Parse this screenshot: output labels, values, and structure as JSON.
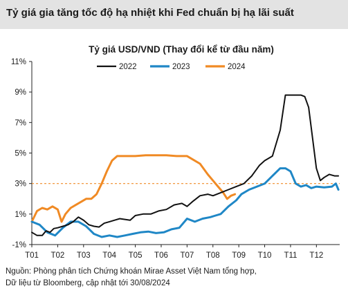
{
  "header": {
    "title": "Tỷ giá gia tăng tốc độ hạ nhiệt khi Fed chuẩn bị hạ lãi suất"
  },
  "chart_data": {
    "type": "line",
    "title": "Tỷ giá USD/VND (Thay đổi kể từ đầu năm)",
    "xlabel": "",
    "ylabel": "",
    "x_ticks": [
      "T01",
      "T02",
      "T03",
      "T04",
      "T05",
      "T06",
      "T07",
      "T08",
      "T09",
      "T10",
      "T11",
      "T12"
    ],
    "y_ticks": [
      "11%",
      "9%",
      "7%",
      "5%",
      "3%",
      "1%",
      "-1%"
    ],
    "y_tick_values": [
      11,
      9,
      7,
      5,
      3,
      1,
      -1
    ],
    "ylim": [
      -1,
      11
    ],
    "xlim": [
      1,
      12.9
    ],
    "grid": false,
    "legend_position": "top",
    "reference_line": {
      "y": 3.0,
      "style": "dashed",
      "color": "#f08a24"
    },
    "series": [
      {
        "name": "2022",
        "color": "#111111",
        "points": [
          [
            1.0,
            -0.2
          ],
          [
            1.2,
            -0.4
          ],
          [
            1.4,
            -0.4
          ],
          [
            1.55,
            -0.1
          ],
          [
            1.7,
            -0.2
          ],
          [
            1.85,
            0.05
          ],
          [
            2.0,
            0.1
          ],
          [
            2.2,
            0.2
          ],
          [
            2.4,
            0.3
          ],
          [
            2.6,
            0.5
          ],
          [
            2.8,
            0.8
          ],
          [
            3.0,
            0.6
          ],
          [
            3.2,
            0.3
          ],
          [
            3.4,
            0.2
          ],
          [
            3.6,
            0.15
          ],
          [
            3.8,
            0.4
          ],
          [
            4.0,
            0.5
          ],
          [
            4.2,
            0.6
          ],
          [
            4.4,
            0.7
          ],
          [
            4.6,
            0.65
          ],
          [
            4.8,
            0.6
          ],
          [
            5.0,
            0.9
          ],
          [
            5.3,
            1.0
          ],
          [
            5.6,
            1.0
          ],
          [
            5.9,
            1.2
          ],
          [
            6.2,
            1.3
          ],
          [
            6.5,
            1.6
          ],
          [
            6.8,
            1.7
          ],
          [
            7.0,
            1.5
          ],
          [
            7.2,
            1.8
          ],
          [
            7.5,
            2.2
          ],
          [
            7.8,
            2.3
          ],
          [
            8.0,
            2.2
          ],
          [
            8.3,
            2.4
          ],
          [
            8.6,
            2.6
          ],
          [
            8.9,
            2.8
          ],
          [
            9.2,
            3.0
          ],
          [
            9.5,
            3.5
          ],
          [
            9.8,
            4.2
          ],
          [
            10.0,
            4.5
          ],
          [
            10.3,
            4.8
          ],
          [
            10.6,
            6.5
          ],
          [
            10.8,
            8.8
          ],
          [
            11.0,
            8.8
          ],
          [
            11.2,
            8.8
          ],
          [
            11.4,
            8.8
          ],
          [
            11.55,
            8.7
          ],
          [
            11.7,
            8.0
          ],
          [
            11.85,
            6.0
          ],
          [
            12.0,
            4.0
          ],
          [
            12.15,
            3.2
          ],
          [
            12.3,
            3.4
          ],
          [
            12.5,
            3.6
          ],
          [
            12.7,
            3.5
          ],
          [
            12.85,
            3.5
          ]
        ]
      },
      {
        "name": "2023",
        "color": "#1f87c6",
        "points": [
          [
            1.0,
            0.5
          ],
          [
            1.3,
            0.3
          ],
          [
            1.6,
            -0.2
          ],
          [
            1.9,
            -0.4
          ],
          [
            2.2,
            0.1
          ],
          [
            2.5,
            0.5
          ],
          [
            2.8,
            0.5
          ],
          [
            3.1,
            0.2
          ],
          [
            3.4,
            -0.3
          ],
          [
            3.7,
            -0.5
          ],
          [
            4.0,
            -0.4
          ],
          [
            4.3,
            -0.5
          ],
          [
            4.6,
            -0.4
          ],
          [
            4.9,
            -0.3
          ],
          [
            5.2,
            -0.2
          ],
          [
            5.5,
            -0.15
          ],
          [
            5.8,
            -0.25
          ],
          [
            6.1,
            -0.2
          ],
          [
            6.4,
            0.0
          ],
          [
            6.7,
            0.1
          ],
          [
            7.0,
            0.7
          ],
          [
            7.3,
            0.5
          ],
          [
            7.6,
            0.7
          ],
          [
            7.9,
            0.8
          ],
          [
            8.1,
            0.9
          ],
          [
            8.3,
            1.0
          ],
          [
            8.6,
            1.5
          ],
          [
            8.9,
            1.9
          ],
          [
            9.1,
            2.3
          ],
          [
            9.4,
            2.6
          ],
          [
            9.7,
            2.8
          ],
          [
            10.0,
            3.0
          ],
          [
            10.3,
            3.5
          ],
          [
            10.6,
            4.0
          ],
          [
            10.8,
            4.0
          ],
          [
            11.0,
            3.8
          ],
          [
            11.2,
            3.0
          ],
          [
            11.4,
            2.8
          ],
          [
            11.6,
            2.9
          ],
          [
            11.8,
            2.7
          ],
          [
            12.0,
            2.8
          ],
          [
            12.3,
            2.75
          ],
          [
            12.6,
            2.8
          ],
          [
            12.75,
            3.0
          ],
          [
            12.85,
            2.6
          ]
        ]
      },
      {
        "name": "2024",
        "color": "#f08a24",
        "points": [
          [
            1.0,
            0.5
          ],
          [
            1.2,
            1.2
          ],
          [
            1.4,
            1.4
          ],
          [
            1.6,
            1.3
          ],
          [
            1.8,
            1.5
          ],
          [
            2.0,
            1.3
          ],
          [
            2.15,
            0.5
          ],
          [
            2.3,
            1.0
          ],
          [
            2.5,
            1.4
          ],
          [
            2.7,
            1.6
          ],
          [
            2.9,
            1.8
          ],
          [
            3.1,
            2.0
          ],
          [
            3.3,
            2.0
          ],
          [
            3.5,
            2.3
          ],
          [
            3.7,
            3.0
          ],
          [
            3.9,
            3.8
          ],
          [
            4.1,
            4.5
          ],
          [
            4.3,
            4.8
          ],
          [
            4.6,
            4.8
          ],
          [
            5.0,
            4.8
          ],
          [
            5.4,
            4.85
          ],
          [
            5.8,
            4.85
          ],
          [
            6.2,
            4.85
          ],
          [
            6.6,
            4.8
          ],
          [
            7.0,
            4.8
          ],
          [
            7.2,
            4.6
          ],
          [
            7.5,
            4.3
          ],
          [
            7.8,
            3.6
          ],
          [
            8.0,
            3.2
          ],
          [
            8.2,
            2.8
          ],
          [
            8.4,
            2.4
          ],
          [
            8.55,
            2.0
          ],
          [
            8.7,
            2.2
          ],
          [
            8.85,
            2.3
          ]
        ]
      }
    ]
  },
  "source": {
    "line1": "Nguồn: Phòng phân tích Chứng khoán Mirae Asset Việt Nam tổng hợp,",
    "line2": "Dữ liệu từ Bloomberg, cập nhật tới 30/08/2024"
  }
}
